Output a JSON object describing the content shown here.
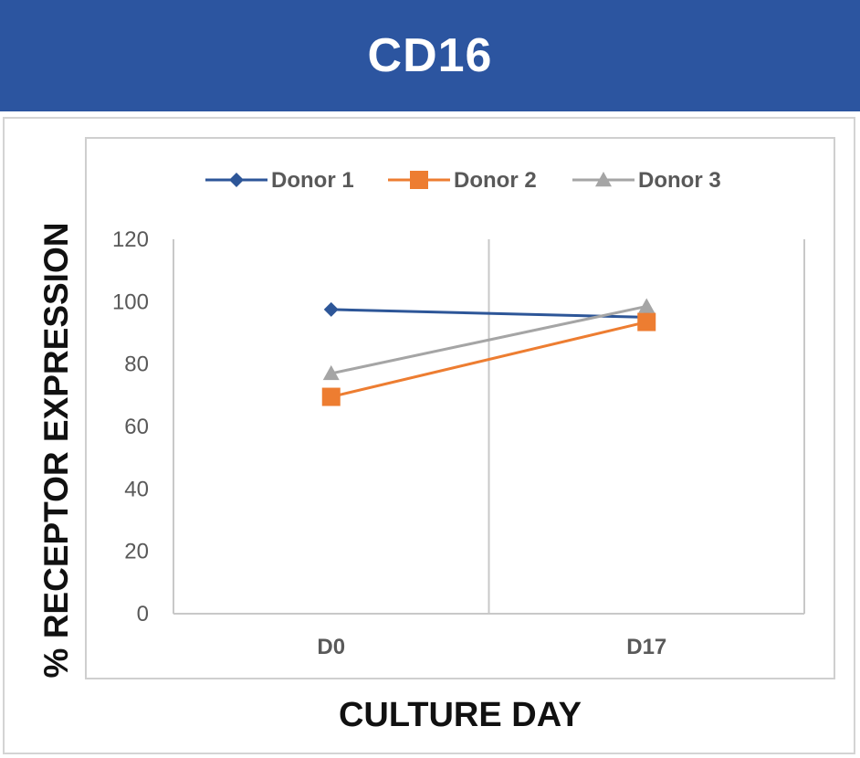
{
  "header": {
    "title": "CD16"
  },
  "chart_data": {
    "type": "line",
    "title": "CD16",
    "xlabel": "CULTURE DAY",
    "ylabel": "% RECEPTOR EXPRESSION",
    "categories": [
      "D0",
      "D17"
    ],
    "ylim": [
      0,
      120
    ],
    "yticks": [
      0,
      20,
      40,
      60,
      80,
      100,
      120
    ],
    "grid": "vertical",
    "legend": "top-center",
    "series": [
      {
        "name": "Donor 1",
        "marker": "diamond",
        "color": "#2d5698",
        "values": [
          97.5,
          95
        ]
      },
      {
        "name": "Donor 2",
        "marker": "square",
        "color": "#ed7d31",
        "values": [
          69.5,
          93.5
        ]
      },
      {
        "name": "Donor 3",
        "marker": "triangle",
        "color": "#a5a5a5",
        "values": [
          77,
          98.5
        ]
      }
    ]
  }
}
